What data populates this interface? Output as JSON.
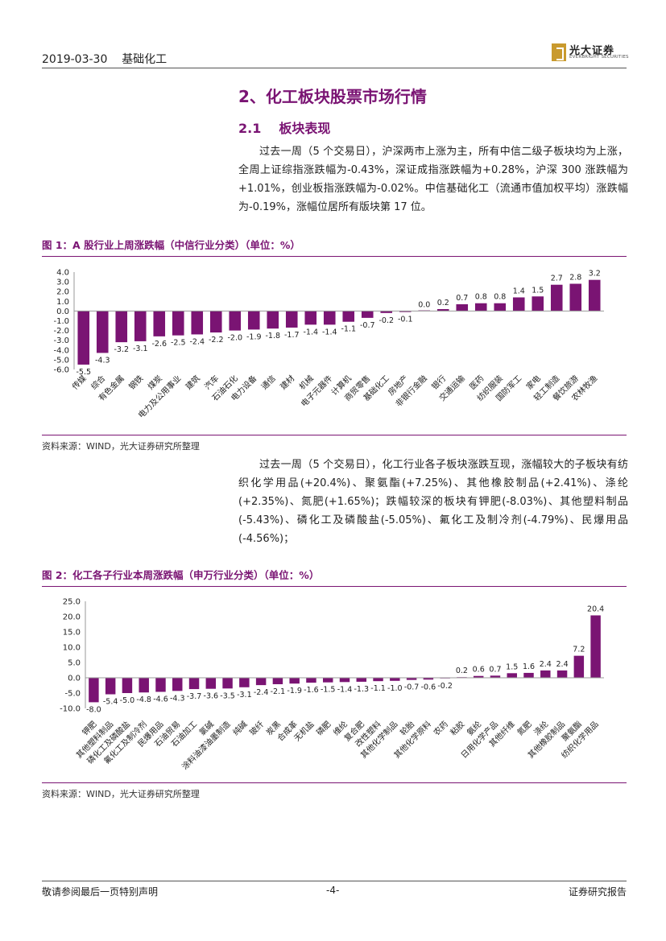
{
  "header": {
    "date": "2019-03-30",
    "category": "基础化工",
    "logo_cn": "光大证券",
    "logo_en": "EVERBRIGHT SECURITIES"
  },
  "section": {
    "title": "2、化工板块股票市场行情",
    "sub_num": "2.1",
    "sub_title": "板块表现"
  },
  "para1": "过去一周（5 个交易日），沪深两市上涨为主，所有中信二级子板块均为上涨，全周上证综指涨跌幅为-0.43%，深证成指涨跌幅为+0.28%，沪深 300 涨跌幅为+1.01%，创业板指涨跌幅为-0.02%。中信基础化工（流通市值加权平均）涨跌幅为-0.19%，涨幅位居所有版块第 17 位。",
  "fig1": {
    "title": "图 1：A 股行业上周涨跌幅（中信行业分类）（单位：%）",
    "source": "资料来源：WIND，光大证券研究所整理"
  },
  "para2": "过去一周（5 个交易日），化工行业各子板块涨跌互现，涨幅较大的子板块有纺织化学用品(+20.4%)、聚氨酯(+7.25%)、其他橡胶制品(+2.41%)、涤纶(+2.35%)、氮肥(+1.65%)；跌幅较深的板块有钾肥(-8.03%)、其他塑料制品(-5.43%)、磷化工及磷酸盐(-5.05%)、氟化工及制冷剂(-4.79%)、民爆用品(-4.56%)；",
  "fig2": {
    "title": "图 2：化工各子行业本周涨跌幅（申万行业分类）（单位：%）",
    "source": "资料来源：WIND，光大证券研究所整理"
  },
  "footer": {
    "left": "敬请参阅最后一页特别声明",
    "center": "-4-",
    "right": "证券研究报告"
  },
  "colors": {
    "bar": "#7a1473",
    "accent": "#7a1473"
  },
  "chart_data": [
    {
      "type": "bar",
      "ylim": [
        -6.0,
        4.0
      ],
      "yticks": [
        "4.0",
        "3.0",
        "2.0",
        "1.0",
        "0.0",
        "-1.0",
        "-2.0",
        "-3.0",
        "-4.0",
        "-5.0",
        "-6.0"
      ],
      "categories": [
        "传媒",
        "综合",
        "有色金属",
        "钢铁",
        "煤炭",
        "电力及公用事业",
        "建筑",
        "汽车",
        "石油石化",
        "电力设备",
        "通信",
        "建材",
        "机械",
        "电子元器件",
        "计算机",
        "商贸零售",
        "基础化工",
        "房地产",
        "非银行金融",
        "银行",
        "交通运输",
        "医药",
        "纺织服装",
        "国防军工",
        "家电",
        "轻工制造",
        "餐饮旅游",
        "农林牧渔"
      ],
      "values": [
        -5.5,
        -4.3,
        -3.2,
        -3.1,
        -2.6,
        -2.5,
        -2.4,
        -2.2,
        -2.0,
        -1.9,
        -1.8,
        -1.7,
        -1.4,
        -1.4,
        -1.1,
        -0.7,
        -0.2,
        -0.1,
        0.0,
        0.2,
        0.7,
        0.8,
        0.8,
        1.4,
        1.5,
        2.7,
        2.8,
        3.2
      ],
      "labels": [
        "-5.5",
        "-4.3",
        "-3.2",
        "-3.1",
        "-2.6",
        "-2.5",
        "-2.4",
        "-2.2",
        "-2.0",
        "-1.9",
        "-1.8",
        "-1.7",
        "-1.4",
        "-1.4",
        "-1.1",
        "-0.7",
        "-0.2",
        "-0.1",
        "0.0",
        "0.2",
        "0.7",
        "0.8",
        "0.8",
        "1.4",
        "1.5",
        "2.7",
        "2.8",
        "3.2"
      ],
      "grid": false,
      "legend": "none"
    },
    {
      "type": "bar",
      "ylim": [
        -10.0,
        25.0
      ],
      "yticks": [
        "25.0",
        "20.0",
        "15.0",
        "10.0",
        "5.0",
        "0.0",
        "-5.0",
        "-10.0"
      ],
      "categories": [
        "钾肥",
        "其他塑料制品",
        "磷化工及磷酸盐",
        "氟化工及制冷剂",
        "民爆用品",
        "石油贸易",
        "石油加工",
        "氯碱",
        "涂料油漆油墨制造",
        "纯碱",
        "玻纤",
        "炭黑",
        "合成革",
        "无机盐",
        "磷肥",
        "维纶",
        "复合肥",
        "改性塑料",
        "其他化学制品",
        "轮胎",
        "其他化学原料",
        "农药",
        "粘胶",
        "氨纶",
        "日用化学产品",
        "其他纤维",
        "氮肥",
        "涤纶",
        "其他橡胶制品",
        "聚氨酯",
        "纺织化学用品"
      ],
      "values": [
        -8.0,
        -5.4,
        -5.0,
        -4.8,
        -4.6,
        -4.3,
        -3.7,
        -3.6,
        -3.5,
        -3.1,
        -2.4,
        -2.1,
        -1.9,
        -1.6,
        -1.5,
        -1.4,
        -1.3,
        -1.1,
        -1.0,
        -0.7,
        -0.6,
        -0.2,
        0.2,
        0.6,
        0.7,
        1.5,
        1.6,
        2.4,
        2.4,
        7.2,
        20.4
      ],
      "labels": [
        "-8.0",
        "-5.4",
        "-5.0",
        "-4.8",
        "-4.6",
        "-4.3",
        "-3.7",
        "-3.6",
        "-3.5",
        "-3.1",
        "-2.4",
        "-2.1",
        "-1.9",
        "-1.6",
        "-1.5",
        "-1.4",
        "-1.3",
        "-1.1",
        "-1.0",
        "-0.7",
        "-0.6",
        "-0.2",
        "0.2",
        "0.6",
        "0.7",
        "1.5",
        "1.6",
        "2.4",
        "2.4",
        "7.2",
        "20.4"
      ],
      "grid": false,
      "legend": "none"
    }
  ]
}
